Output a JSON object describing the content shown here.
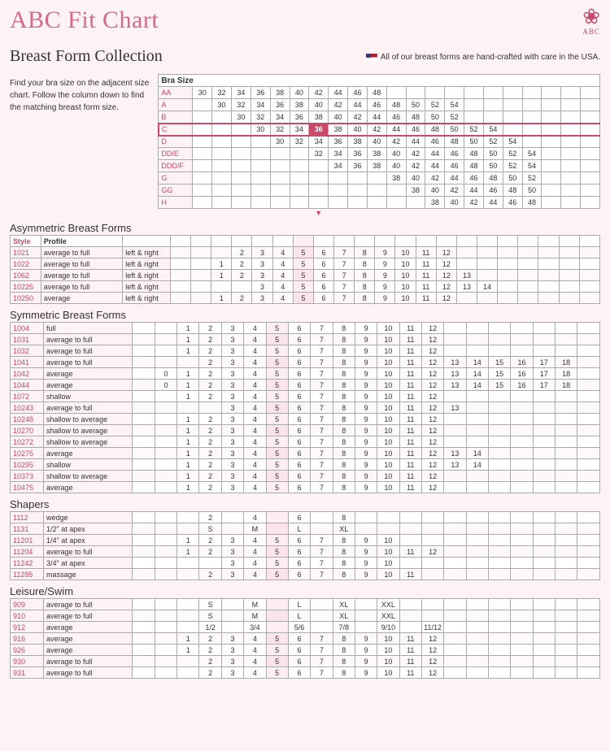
{
  "title": "ABC Fit Chart",
  "logo_label": "ABC",
  "subtitle": "Breast Form Collection",
  "usa_note": "All of our breast forms are hand-crafted with care in the USA.",
  "instructions": "Find your bra size on the adjacent size chart. Follow the column down to find the matching breast form size.",
  "bra_size_header": "Bra Size",
  "num_data_cols": 21,
  "highlight_col": 7,
  "bra_rows": [
    {
      "label": "AA",
      "hl": false,
      "vals": [
        "30",
        "32",
        "34",
        "36",
        "38",
        "40",
        "42",
        "44",
        "46",
        "48",
        "",
        "",
        "",
        "",
        "",
        "",
        "",
        "",
        "",
        "",
        ""
      ]
    },
    {
      "label": "A",
      "hl": false,
      "vals": [
        "",
        "30",
        "32",
        "34",
        "36",
        "38",
        "40",
        "42",
        "44",
        "46",
        "48",
        "50",
        "52",
        "54",
        "",
        "",
        "",
        "",
        "",
        "",
        ""
      ]
    },
    {
      "label": "B",
      "hl": false,
      "vals": [
        "",
        "",
        "30",
        "32",
        "34",
        "36",
        "38",
        "40",
        "42",
        "44",
        "46",
        "48",
        "50",
        "52",
        "",
        "",
        "",
        "",
        "",
        "",
        ""
      ]
    },
    {
      "label": "C",
      "hl": true,
      "vals": [
        "",
        "",
        "",
        "30",
        "32",
        "34",
        "36",
        "38",
        "40",
        "42",
        "44",
        "46",
        "48",
        "50",
        "52",
        "54",
        "",
        "",
        "",
        "",
        ""
      ]
    },
    {
      "label": "D",
      "hl": false,
      "vals": [
        "",
        "",
        "",
        "",
        "30",
        "32",
        "34",
        "36",
        "38",
        "40",
        "42",
        "44",
        "46",
        "48",
        "50",
        "52",
        "54",
        "",
        "",
        "",
        ""
      ]
    },
    {
      "label": "DD/E",
      "hl": false,
      "vals": [
        "",
        "",
        "",
        "",
        "",
        "",
        "32",
        "34",
        "36",
        "38",
        "40",
        "42",
        "44",
        "46",
        "48",
        "50",
        "52",
        "54",
        "",
        "",
        ""
      ]
    },
    {
      "label": "DDD/F",
      "hl": false,
      "vals": [
        "",
        "",
        "",
        "",
        "",
        "",
        "",
        "34",
        "36",
        "38",
        "40",
        "42",
        "44",
        "46",
        "48",
        "50",
        "52",
        "54",
        "",
        "",
        ""
      ]
    },
    {
      "label": "G",
      "hl": false,
      "vals": [
        "",
        "",
        "",
        "",
        "",
        "",
        "",
        "",
        "",
        "",
        "38",
        "40",
        "42",
        "44",
        "46",
        "48",
        "50",
        "52",
        "",
        "",
        ""
      ]
    },
    {
      "label": "GG",
      "hl": false,
      "vals": [
        "",
        "",
        "",
        "",
        "",
        "",
        "",
        "",
        "",
        "",
        "",
        "38",
        "40",
        "42",
        "44",
        "46",
        "48",
        "50",
        "",
        "",
        ""
      ]
    },
    {
      "label": "H",
      "hl": false,
      "vals": [
        "",
        "",
        "",
        "",
        "",
        "",
        "",
        "",
        "",
        "",
        "",
        "",
        "38",
        "40",
        "42",
        "44",
        "46",
        "48",
        "",
        "",
        ""
      ]
    }
  ],
  "col_headers": {
    "style": "Style",
    "profile": "Profile"
  },
  "sections": [
    {
      "title": "Asymmetric Breast Forms",
      "show_lr": true,
      "rows": [
        {
          "style": "1021",
          "profile": "average to full",
          "lr": "left & right",
          "vals": [
            "",
            "",
            "",
            "2",
            "3",
            "4",
            "5",
            "6",
            "7",
            "8",
            "9",
            "10",
            "11",
            "12",
            "",
            "",
            "",
            "",
            "",
            "",
            ""
          ]
        },
        {
          "style": "1022",
          "profile": "average to full",
          "lr": "left & right",
          "vals": [
            "",
            "",
            "1",
            "2",
            "3",
            "4",
            "5",
            "6",
            "7",
            "8",
            "9",
            "10",
            "11",
            "12",
            "",
            "",
            "",
            "",
            "",
            "",
            ""
          ]
        },
        {
          "style": "1062",
          "profile": "average to full",
          "lr": "left & right",
          "vals": [
            "",
            "",
            "1",
            "2",
            "3",
            "4",
            "5",
            "6",
            "7",
            "8",
            "9",
            "10",
            "11",
            "12",
            "13",
            "",
            "",
            "",
            "",
            "",
            ""
          ]
        },
        {
          "style": "10225",
          "profile": "average to full",
          "lr": "left & right",
          "vals": [
            "",
            "",
            "",
            "",
            "3",
            "4",
            "5",
            "6",
            "7",
            "8",
            "9",
            "10",
            "11",
            "12",
            "13",
            "14",
            "",
            "",
            "",
            "",
            ""
          ]
        },
        {
          "style": "10250",
          "profile": "average",
          "lr": "left & right",
          "vals": [
            "",
            "",
            "1",
            "2",
            "3",
            "4",
            "5",
            "6",
            "7",
            "8",
            "9",
            "10",
            "11",
            "12",
            "",
            "",
            "",
            "",
            "",
            "",
            ""
          ]
        }
      ]
    },
    {
      "title": "Symmetric Breast Forms",
      "show_lr": false,
      "rows": [
        {
          "style": "1004",
          "profile": "full",
          "vals": [
            "",
            "",
            "1",
            "2",
            "3",
            "4",
            "5",
            "6",
            "7",
            "8",
            "9",
            "10",
            "11",
            "12",
            "",
            "",
            "",
            "",
            "",
            "",
            ""
          ]
        },
        {
          "style": "1031",
          "profile": "average to full",
          "vals": [
            "",
            "",
            "1",
            "2",
            "3",
            "4",
            "5",
            "6",
            "7",
            "8",
            "9",
            "10",
            "11",
            "12",
            "",
            "",
            "",
            "",
            "",
            "",
            ""
          ]
        },
        {
          "style": "1032",
          "profile": "average to full",
          "vals": [
            "",
            "",
            "1",
            "2",
            "3",
            "4",
            "5",
            "6",
            "7",
            "8",
            "9",
            "10",
            "11",
            "12",
            "",
            "",
            "",
            "",
            "",
            "",
            ""
          ]
        },
        {
          "style": "1041",
          "profile": "average to full",
          "vals": [
            "",
            "",
            "",
            "2",
            "3",
            "4",
            "5",
            "6",
            "7",
            "8",
            "9",
            "10",
            "11",
            "12",
            "13",
            "14",
            "15",
            "16",
            "17",
            "18",
            ""
          ]
        },
        {
          "style": "1042",
          "profile": "average",
          "vals": [
            "",
            "0",
            "1",
            "2",
            "3",
            "4",
            "5",
            "6",
            "7",
            "8",
            "9",
            "10",
            "11",
            "12",
            "13",
            "14",
            "15",
            "16",
            "17",
            "18",
            ""
          ]
        },
        {
          "style": "1044",
          "profile": "average",
          "vals": [
            "",
            "0",
            "1",
            "2",
            "3",
            "4",
            "5",
            "6",
            "7",
            "8",
            "9",
            "10",
            "11",
            "12",
            "13",
            "14",
            "15",
            "16",
            "17",
            "18",
            ""
          ]
        },
        {
          "style": "1072",
          "profile": "shallow",
          "vals": [
            "",
            "",
            "1",
            "2",
            "3",
            "4",
            "5",
            "6",
            "7",
            "8",
            "9",
            "10",
            "11",
            "12",
            "",
            "",
            "",
            "",
            "",
            "",
            ""
          ]
        },
        {
          "style": "10243",
          "profile": "average to full",
          "vals": [
            "",
            "",
            "",
            "",
            "3",
            "4",
            "5",
            "6",
            "7",
            "8",
            "9",
            "10",
            "11",
            "12",
            "13",
            "",
            "",
            "",
            "",
            "",
            ""
          ]
        },
        {
          "style": "10248",
          "profile": "shallow to average",
          "vals": [
            "",
            "",
            "1",
            "2",
            "3",
            "4",
            "5",
            "6",
            "7",
            "8",
            "9",
            "10",
            "11",
            "12",
            "",
            "",
            "",
            "",
            "",
            "",
            ""
          ]
        },
        {
          "style": "10270",
          "profile": "shallow to average",
          "vals": [
            "",
            "",
            "1",
            "2",
            "3",
            "4",
            "5",
            "6",
            "7",
            "8",
            "9",
            "10",
            "11",
            "12",
            "",
            "",
            "",
            "",
            "",
            "",
            ""
          ]
        },
        {
          "style": "10272",
          "profile": "shallow to average",
          "vals": [
            "",
            "",
            "1",
            "2",
            "3",
            "4",
            "5",
            "6",
            "7",
            "8",
            "9",
            "10",
            "11",
            "12",
            "",
            "",
            "",
            "",
            "",
            "",
            ""
          ]
        },
        {
          "style": "10275",
          "profile": "average",
          "vals": [
            "",
            "",
            "1",
            "2",
            "3",
            "4",
            "5",
            "6",
            "7",
            "8",
            "9",
            "10",
            "11",
            "12",
            "13",
            "14",
            "",
            "",
            "",
            "",
            ""
          ]
        },
        {
          "style": "10295",
          "profile": "shallow",
          "vals": [
            "",
            "",
            "1",
            "2",
            "3",
            "4",
            "5",
            "6",
            "7",
            "8",
            "9",
            "10",
            "11",
            "12",
            "13",
            "14",
            "",
            "",
            "",
            "",
            ""
          ]
        },
        {
          "style": "10373",
          "profile": "shallow to average",
          "vals": [
            "",
            "",
            "1",
            "2",
            "3",
            "4",
            "5",
            "6",
            "7",
            "8",
            "9",
            "10",
            "11",
            "12",
            "",
            "",
            "",
            "",
            "",
            "",
            ""
          ]
        },
        {
          "style": "10475",
          "profile": "average",
          "vals": [
            "",
            "",
            "1",
            "2",
            "3",
            "4",
            "5",
            "6",
            "7",
            "8",
            "9",
            "10",
            "11",
            "12",
            "",
            "",
            "",
            "",
            "",
            "",
            ""
          ]
        }
      ]
    },
    {
      "title": "Shapers",
      "show_lr": false,
      "rows": [
        {
          "style": "1112",
          "profile": "wedge",
          "vals": [
            "",
            "",
            "",
            "2",
            "",
            "4",
            "",
            "6",
            "",
            "8",
            "",
            "",
            "",
            "",
            "",
            "",
            "",
            "",
            "",
            "",
            ""
          ]
        },
        {
          "style": "1131",
          "profile": "1/2\" at apex",
          "vals": [
            "",
            "",
            "",
            "S",
            "",
            "M",
            "",
            "L",
            "",
            "XL",
            "",
            "",
            "",
            "",
            "",
            "",
            "",
            "",
            "",
            "",
            ""
          ]
        },
        {
          "style": "11201",
          "profile": "1/4\" at apex",
          "vals": [
            "",
            "",
            "1",
            "2",
            "3",
            "4",
            "5",
            "6",
            "7",
            "8",
            "9",
            "10",
            "",
            "",
            "",
            "",
            "",
            "",
            "",
            "",
            ""
          ]
        },
        {
          "style": "11204",
          "profile": "average to full",
          "vals": [
            "",
            "",
            "1",
            "2",
            "3",
            "4",
            "5",
            "6",
            "7",
            "8",
            "9",
            "10",
            "11",
            "12",
            "",
            "",
            "",
            "",
            "",
            "",
            ""
          ]
        },
        {
          "style": "11242",
          "profile": "3/4\" at apex",
          "vals": [
            "",
            "",
            "",
            "",
            "3",
            "4",
            "5",
            "6",
            "7",
            "8",
            "9",
            "10",
            "",
            "",
            "",
            "",
            "",
            "",
            "",
            "",
            ""
          ]
        },
        {
          "style": "11285",
          "profile": "massage",
          "vals": [
            "",
            "",
            "",
            "2",
            "3",
            "4",
            "5",
            "6",
            "7",
            "8",
            "9",
            "10",
            "11",
            "",
            "",
            "",
            "",
            "",
            "",
            "",
            ""
          ]
        }
      ]
    },
    {
      "title": "Leisure/Swim",
      "show_lr": false,
      "rows": [
        {
          "style": "909",
          "profile": "average to full",
          "vals": [
            "",
            "",
            "",
            "S",
            "",
            "M",
            "",
            "L",
            "",
            "XL",
            "",
            "XXL",
            "",
            "",
            "",
            "",
            "",
            "",
            "",
            "",
            ""
          ]
        },
        {
          "style": "910",
          "profile": "average to full",
          "vals": [
            "",
            "",
            "",
            "S",
            "",
            "M",
            "",
            "L",
            "",
            "XL",
            "",
            "XXL",
            "",
            "",
            "",
            "",
            "",
            "",
            "",
            "",
            ""
          ]
        },
        {
          "style": "912",
          "profile": "average",
          "vals": [
            "",
            "",
            "",
            "1/2",
            "",
            "3/4",
            "",
            "5/6",
            "",
            "7/8",
            "",
            "9/10",
            "",
            "11/12",
            "",
            "",
            "",
            "",
            "",
            "",
            ""
          ]
        },
        {
          "style": "916",
          "profile": "average",
          "vals": [
            "",
            "",
            "1",
            "2",
            "3",
            "4",
            "5",
            "6",
            "7",
            "8",
            "9",
            "10",
            "11",
            "12",
            "",
            "",
            "",
            "",
            "",
            "",
            ""
          ]
        },
        {
          "style": "926",
          "profile": "average",
          "vals": [
            "",
            "",
            "1",
            "2",
            "3",
            "4",
            "5",
            "6",
            "7",
            "8",
            "9",
            "10",
            "11",
            "12",
            "",
            "",
            "",
            "",
            "",
            "",
            ""
          ]
        },
        {
          "style": "930",
          "profile": "average to full",
          "vals": [
            "",
            "",
            "",
            "2",
            "3",
            "4",
            "5",
            "6",
            "7",
            "8",
            "9",
            "10",
            "11",
            "12",
            "",
            "",
            "",
            "",
            "",
            "",
            ""
          ]
        },
        {
          "style": "931",
          "profile": "average to full",
          "vals": [
            "",
            "",
            "",
            "2",
            "3",
            "4",
            "5",
            "6",
            "7",
            "8",
            "9",
            "10",
            "11",
            "12",
            "",
            "",
            "",
            "",
            "",
            "",
            ""
          ]
        }
      ]
    }
  ]
}
